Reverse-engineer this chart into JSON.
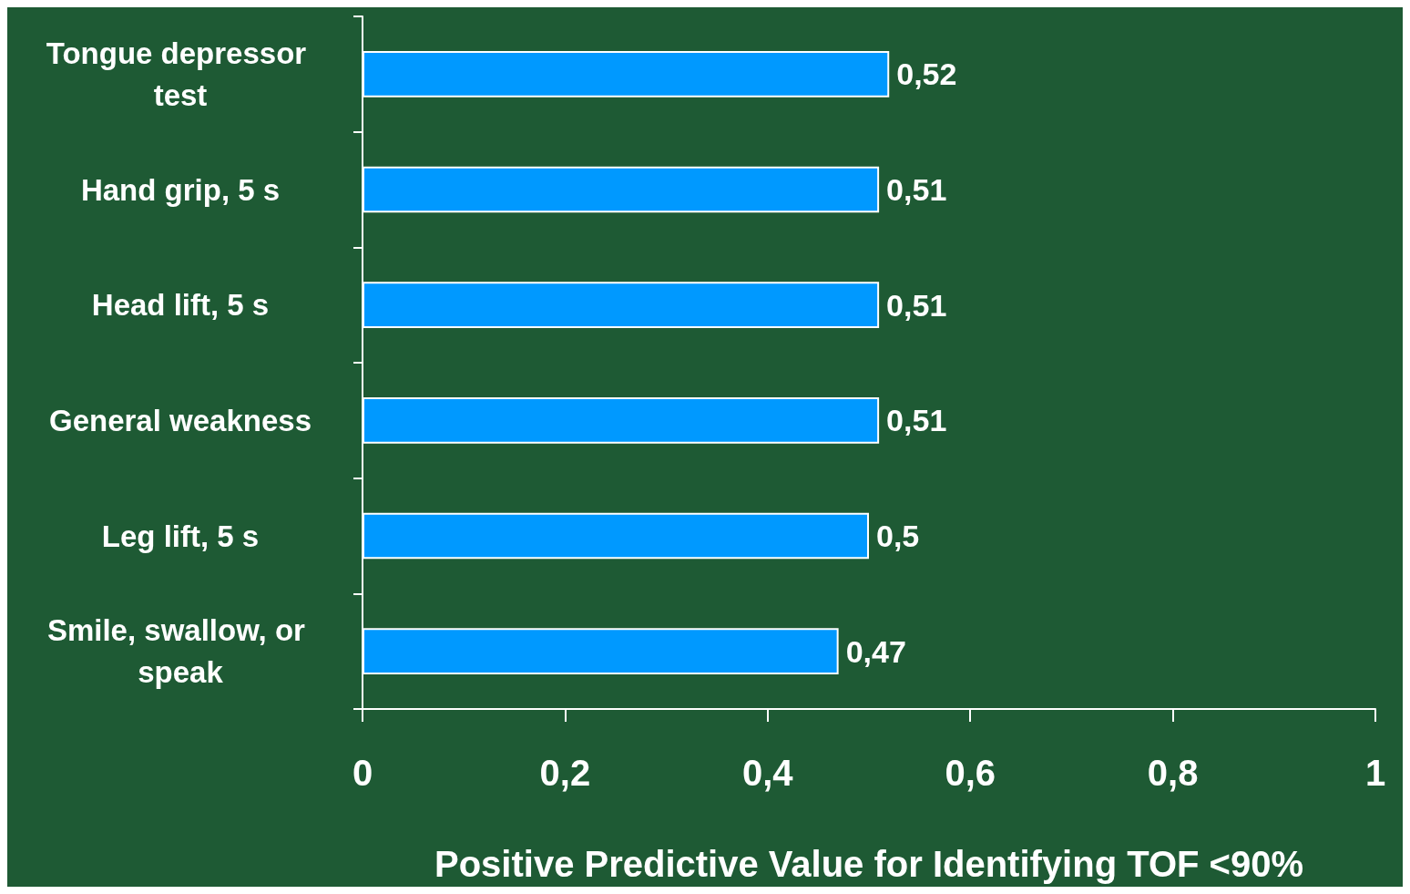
{
  "chart_data": {
    "type": "bar",
    "orientation": "horizontal",
    "xlabel": "Positive Predictive Value for Identifying TOF <90%",
    "categories": [
      "Tongue depressor test",
      "Hand grip, 5 s",
      "Head lift, 5 s",
      "General weakness",
      "Leg lift, 5 s",
      "Smile, swallow, or speak"
    ],
    "values": [
      0.52,
      0.51,
      0.51,
      0.51,
      0.5,
      0.47
    ],
    "value_labels": [
      "0,52",
      "0,51",
      "0,51",
      "0,51",
      "0,5",
      "0,47"
    ],
    "color": "#0099ff",
    "xlim": [
      0,
      1
    ],
    "xticks": [
      0,
      {
        "value": 0.2,
        "label": "0,2"
      },
      {
        "value": 0.4,
        "label": "0,4"
      },
      {
        "value": 0.6,
        "label": "0,6"
      },
      {
        "value": 0.8,
        "label": "0,8"
      },
      1
    ]
  }
}
